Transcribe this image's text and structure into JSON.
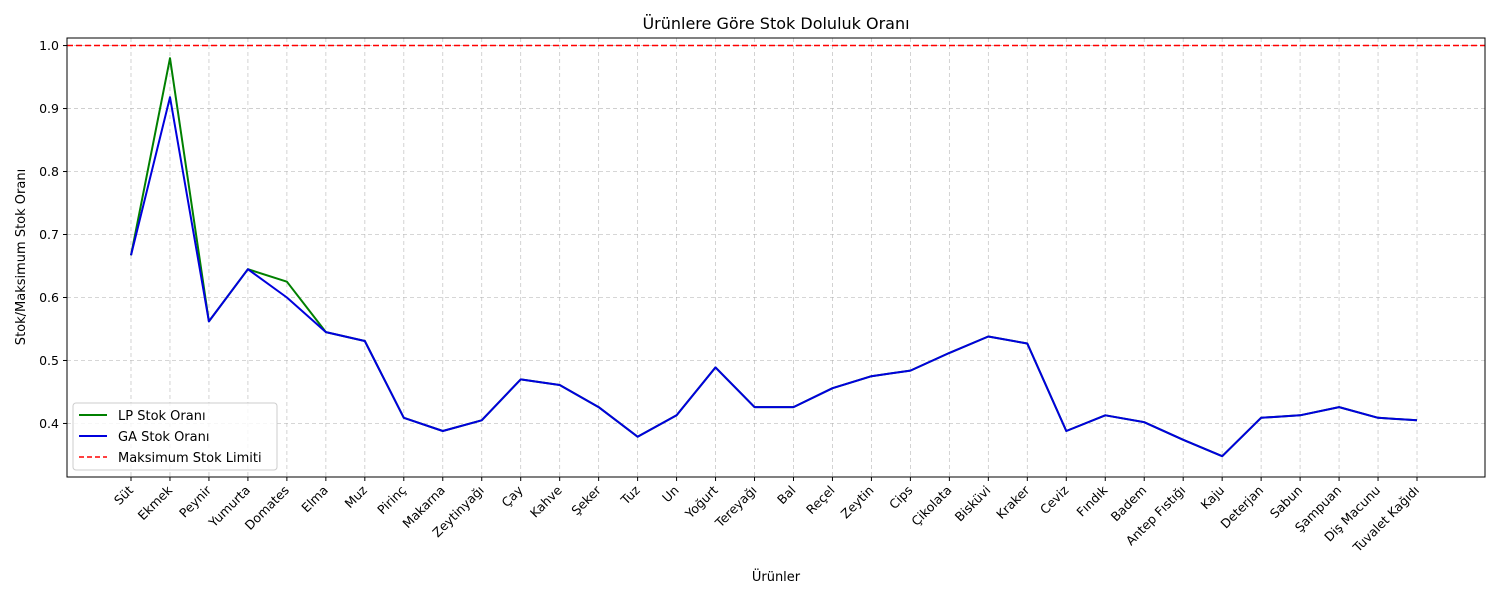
{
  "chart_data": {
    "type": "line",
    "title": "Ürünlere Göre Stok Doluluk Oranı",
    "xlabel": "Ürünler",
    "ylabel": "Stok/Maksimum Stok Oranı",
    "ylim": [
      0.315,
      1.012
    ],
    "yticks": [
      0.4,
      0.5,
      0.6,
      0.7,
      0.8,
      0.9,
      1.0
    ],
    "ytick_labels": [
      "0.4",
      "0.5",
      "0.6",
      "0.7",
      "0.8",
      "0.9",
      "1.0"
    ],
    "grid": true,
    "legend_position": "lower-left",
    "categories": [
      "Süt",
      "Ekmek",
      "Peynir",
      "Yumurta",
      "Domates",
      "Elma",
      "Muz",
      "Pirinç",
      "Makarna",
      "Zeytinyağı",
      "Çay",
      "Kahve",
      "Şeker",
      "Tuz",
      "Un",
      "Yoğurt",
      "Tereyağı",
      "Bal",
      "Reçel",
      "Zeytin",
      "Cips",
      "Çikolata",
      "Bisküvi",
      "Kraker",
      "Ceviz",
      "Fındık",
      "Badem",
      "Antep Fıstığı",
      "Kaju",
      "Deterjan",
      "Sabun",
      "Şampuan",
      "Diş Macunu",
      "Tuvalet Kağıdı"
    ],
    "series": [
      {
        "name": "LP Stok Oranı",
        "color": "#008000",
        "values": [
          0.667,
          0.98,
          0.562,
          0.645,
          0.625,
          0.545,
          0.531,
          0.409,
          0.388,
          0.405,
          0.47,
          0.461,
          0.426,
          0.379,
          0.413,
          0.489,
          0.426,
          0.426,
          0.456,
          0.475,
          0.484,
          0.512,
          0.538,
          0.527,
          0.388,
          0.413,
          0.402,
          0.374,
          0.348,
          0.409,
          0.413,
          0.426,
          0.409,
          0.405
        ]
      },
      {
        "name": "GA Stok Oranı",
        "color": "#0000dd",
        "values": [
          0.667,
          0.918,
          0.562,
          0.645,
          0.6,
          0.545,
          0.531,
          0.409,
          0.388,
          0.405,
          0.47,
          0.461,
          0.426,
          0.379,
          0.413,
          0.489,
          0.426,
          0.426,
          0.456,
          0.475,
          0.484,
          0.512,
          0.538,
          0.527,
          0.388,
          0.413,
          0.402,
          0.374,
          0.348,
          0.409,
          0.413,
          0.426,
          0.409,
          0.405
        ]
      }
    ],
    "reference_line": {
      "name": "Maksimum Stok Limiti",
      "value": 1.0,
      "color": "#ff0000",
      "style": "dashed"
    }
  }
}
